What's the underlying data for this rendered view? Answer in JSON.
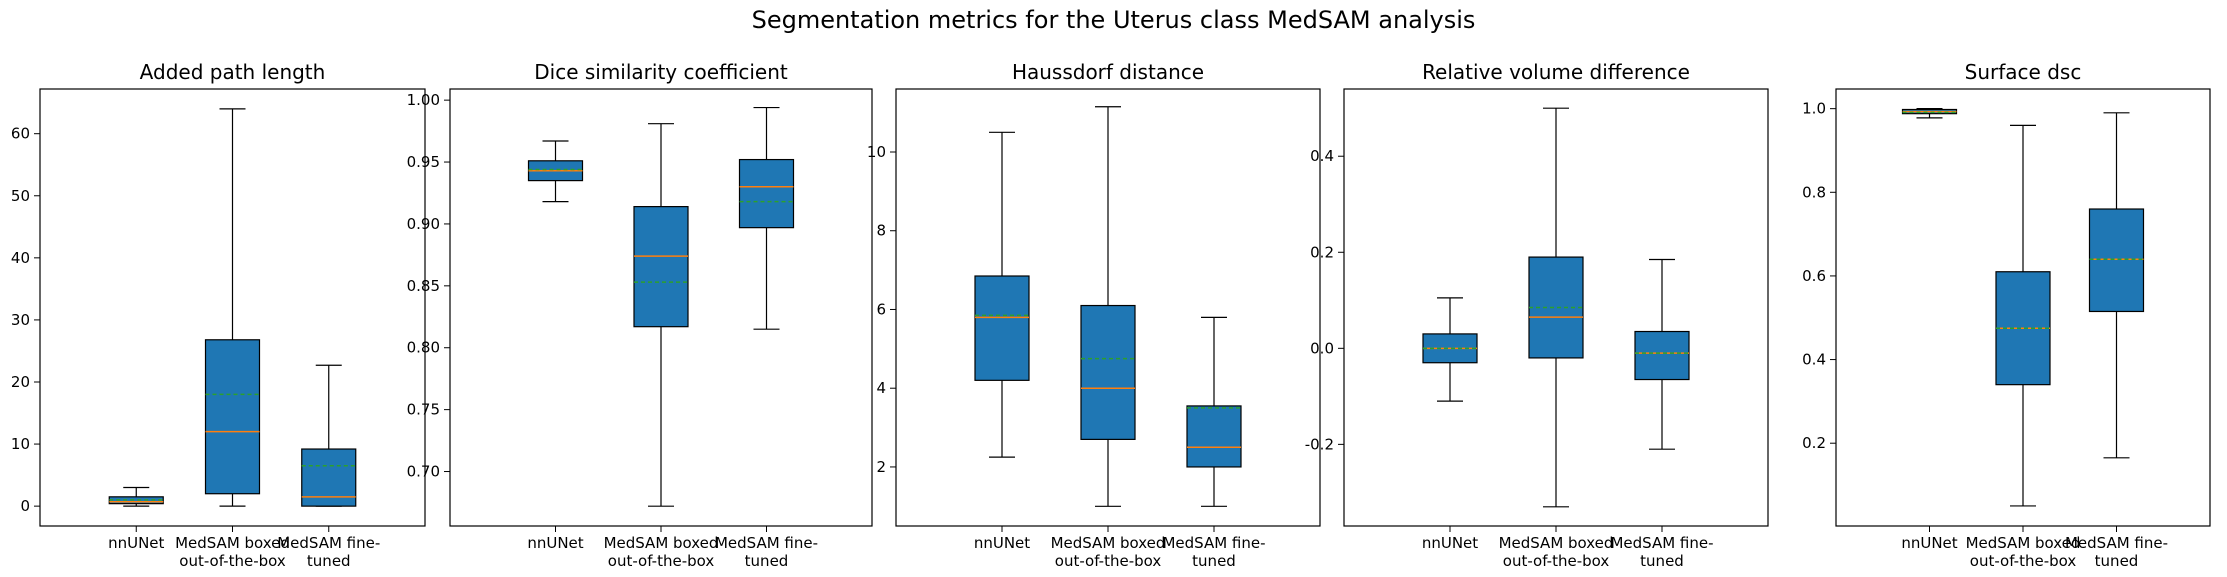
{
  "figure": {
    "title": "Segmentation metrics for the Uterus class MedSAM analysis"
  },
  "colors": {
    "box_fill": "#1f77b4",
    "median_line": "#ff7f0e",
    "mean_line": "#2ca02c",
    "edge": "#000000"
  },
  "chart_data": [
    {
      "type": "box",
      "title": "Added path length",
      "categories": [
        "nnUNet",
        "MedSAM boxed out-of-the-box",
        "MedSAM fine-tuned"
      ],
      "tick_labels": [
        [
          "nnUNet"
        ],
        [
          "MedSAM boxed",
          "out-of-the-box"
        ],
        [
          "MedSAM fine-",
          "tuned"
        ]
      ],
      "yticks": [
        0,
        10,
        20,
        30,
        40,
        50,
        60
      ],
      "ylim": [
        -3.2,
        67.2
      ],
      "boxes": [
        {
          "whislo": 0.0,
          "q1": 0.4,
          "med": 0.7,
          "mean": 1.0,
          "q3": 1.5,
          "whishi": 3.0
        },
        {
          "whislo": 0.0,
          "q1": 2.0,
          "med": 12.0,
          "mean": 18.0,
          "q3": 26.8,
          "whishi": 64.0
        },
        {
          "whislo": 0.0,
          "q1": 0.0,
          "med": 1.5,
          "mean": 6.5,
          "q3": 9.2,
          "whishi": 22.7
        }
      ]
    },
    {
      "type": "box",
      "title": "Dice similarity coefficient",
      "categories": [
        "nnUNet",
        "MedSAM boxed out-of-the-box",
        "MedSAM fine-tuned"
      ],
      "tick_labels": [
        [
          "nnUNet"
        ],
        [
          "MedSAM boxed",
          "out-of-the-box"
        ],
        [
          "MedSAM fine-",
          "tuned"
        ]
      ],
      "yticks": [
        0.7,
        0.75,
        0.8,
        0.85,
        0.9,
        0.95,
        1.0
      ],
      "ylim": [
        0.656,
        1.009
      ],
      "boxes": [
        {
          "whislo": 0.918,
          "q1": 0.935,
          "med": 0.943,
          "mean": 0.944,
          "q3": 0.951,
          "whishi": 0.967
        },
        {
          "whislo": 0.672,
          "q1": 0.817,
          "med": 0.874,
          "mean": 0.853,
          "q3": 0.914,
          "whishi": 0.981
        },
        {
          "whislo": 0.815,
          "q1": 0.897,
          "med": 0.93,
          "mean": 0.918,
          "q3": 0.952,
          "whishi": 0.994
        }
      ]
    },
    {
      "type": "box",
      "title": "Haussdorf distance",
      "categories": [
        "nnUNet",
        "MedSAM boxed out-of-the-box",
        "MedSAM fine-tuned"
      ],
      "tick_labels": [
        [
          "nnUNet"
        ],
        [
          "MedSAM boxed",
          "out-of-the-box"
        ],
        [
          "MedSAM fine-",
          "tuned"
        ]
      ],
      "yticks": [
        2,
        4,
        6,
        8,
        10
      ],
      "ylim": [
        0.5,
        11.6
      ],
      "boxes": [
        {
          "whislo": 2.25,
          "q1": 4.2,
          "med": 5.8,
          "mean": 5.85,
          "q3": 6.85,
          "whishi": 10.5
        },
        {
          "whislo": 1.0,
          "q1": 2.7,
          "med": 4.0,
          "mean": 4.75,
          "q3": 6.1,
          "whishi": 11.15
        },
        {
          "whislo": 1.0,
          "q1": 2.0,
          "med": 2.5,
          "mean": 3.5,
          "q3": 3.55,
          "whishi": 5.8
        }
      ]
    },
    {
      "type": "box",
      "title": "Relative volume difference",
      "categories": [
        "nnUNet",
        "MedSAM boxed out-of-the-box",
        "MedSAM fine-tuned"
      ],
      "tick_labels": [
        [
          "nnUNet"
        ],
        [
          "MedSAM boxed",
          "out-of-the-box"
        ],
        [
          "MedSAM fine-",
          "tuned"
        ]
      ],
      "yticks": [
        -0.2,
        0.0,
        0.2,
        0.4
      ],
      "ylim": [
        -0.37,
        0.54
      ],
      "boxes": [
        {
          "whislo": -0.11,
          "q1": -0.03,
          "med": 0.0,
          "mean": 0.0,
          "q3": 0.03,
          "whishi": 0.105
        },
        {
          "whislo": -0.33,
          "q1": -0.02,
          "med": 0.065,
          "mean": 0.085,
          "q3": 0.19,
          "whishi": 0.5
        },
        {
          "whislo": -0.21,
          "q1": -0.065,
          "med": -0.01,
          "mean": -0.01,
          "q3": 0.035,
          "whishi": 0.185
        }
      ]
    },
    {
      "type": "box",
      "title": "Surface dsc",
      "categories": [
        "nnUNet",
        "MedSAM boxed out-of-the-box",
        "MedSAM fine-tuned"
      ],
      "tick_labels": [
        [
          "nnUNet"
        ],
        [
          "MedSAM boxed",
          "out-of-the-box"
        ],
        [
          "MedSAM fine-",
          "tuned"
        ]
      ],
      "yticks": [
        0.2,
        0.4,
        0.6,
        0.8,
        1.0
      ],
      "ylim": [
        0.002,
        1.047
      ],
      "boxes": [
        {
          "whislo": 0.978,
          "q1": 0.988,
          "med": 0.993,
          "mean": 0.991,
          "q3": 0.998,
          "whishi": 1.0
        },
        {
          "whislo": 0.05,
          "q1": 0.34,
          "med": 0.475,
          "mean": 0.475,
          "q3": 0.61,
          "whishi": 0.96
        },
        {
          "whislo": 0.165,
          "q1": 0.515,
          "med": 0.64,
          "mean": 0.64,
          "q3": 0.76,
          "whishi": 0.99
        }
      ]
    }
  ]
}
